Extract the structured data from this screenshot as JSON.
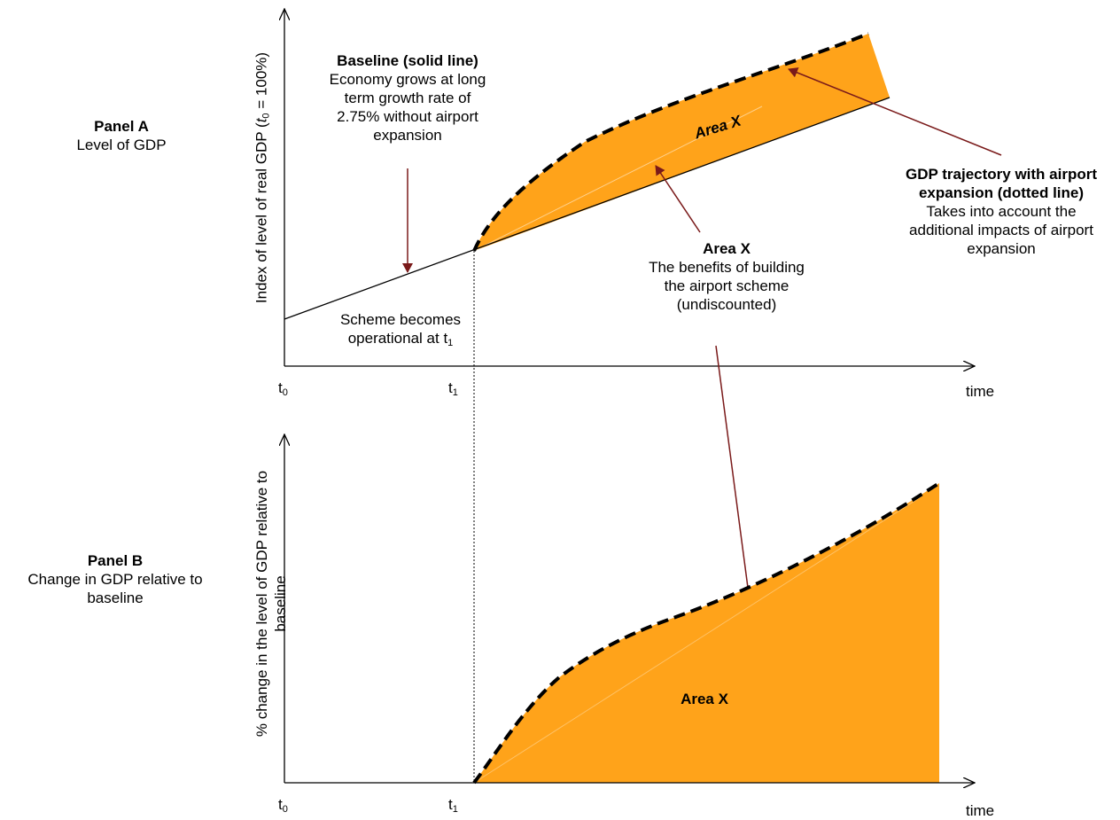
{
  "panel_a": {
    "title": "Panel A",
    "subtitle": "Level of GDP",
    "y_axis_label_prefix": "Index of level of real GDP (",
    "y_axis_label_math": "t",
    "y_axis_label_sub": "0",
    "y_axis_label_suffix": " = 100%)",
    "x_axis_label": "time",
    "tick_t0": "t",
    "tick_t0_sub": "0",
    "tick_t1": "t",
    "tick_t1_sub": "1",
    "baseline_title": "Baseline (solid line)",
    "baseline_line1": "Economy grows at long",
    "baseline_line2": "term growth rate of",
    "baseline_line3": "2.75% without airport",
    "baseline_line4": "expansion",
    "scheme_line1": "Scheme becomes",
    "scheme_line2": "operational at t",
    "scheme_sub": "1",
    "area_inner_label": "Area X",
    "area_callout_title": "Area X",
    "area_callout_line1": "The benefits of building",
    "area_callout_line2": "the airport scheme",
    "area_callout_line3": "(undiscounted)",
    "trajectory_title1": "GDP trajectory with airport",
    "trajectory_title2": "expansion (dotted line)",
    "trajectory_line1": "Takes into account the",
    "trajectory_line2": "additional impacts of airport",
    "trajectory_line3": "expansion"
  },
  "panel_b": {
    "title": "Panel B",
    "subtitle1": "Change in GDP relative to",
    "subtitle2": "baseline",
    "y_axis_label1": "% change in the level of GDP relative to",
    "y_axis_label2": "baseline",
    "x_axis_label": "time",
    "tick_t0": "t",
    "tick_t0_sub": "0",
    "tick_t1": "t",
    "tick_t1_sub": "1",
    "area_label": "Area X"
  },
  "colors": {
    "area_fill": "#FFA31A",
    "arrow": "#7A1A1A",
    "axis": "#000000"
  }
}
